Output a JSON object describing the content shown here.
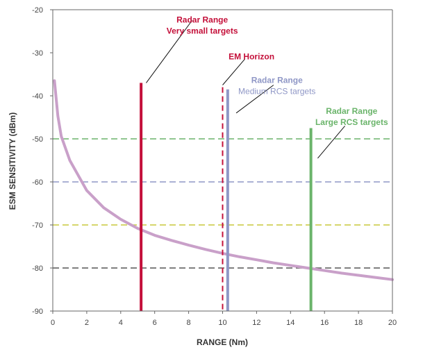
{
  "chart_data": {
    "type": "line",
    "xlabel": "RANGE (Nm)",
    "ylabel": "ESM SENSITIVITY (dBm)",
    "xlim": [
      0,
      20
    ],
    "ylim": [
      -90,
      -20
    ],
    "x_ticks": [
      "0",
      "2",
      "4",
      "6",
      "8",
      "10",
      "12",
      "14",
      "16",
      "18",
      "20"
    ],
    "y_ticks": [
      "-20",
      "-30",
      "-40",
      "-50",
      "-60",
      "-70",
      "-80",
      "-90"
    ],
    "grid": false,
    "curve": {
      "color": "#c9a0c9",
      "x": [
        0.1,
        0.3,
        0.5,
        1,
        1.5,
        2,
        3,
        4,
        5,
        6,
        7,
        8,
        9,
        10,
        11,
        12,
        13,
        14,
        15,
        16,
        17,
        18,
        19,
        20
      ],
      "y": [
        -36.5,
        -44.7,
        -49.4,
        -55.0,
        -58.5,
        -62.0,
        -66.0,
        -68.7,
        -70.8,
        -72.4,
        -73.6,
        -74.7,
        -75.7,
        -76.6,
        -77.4,
        -78.1,
        -78.8,
        -79.4,
        -80.0,
        -80.6,
        -81.2,
        -81.7,
        -82.2,
        -82.7
      ]
    },
    "horizontal_lines": [
      {
        "y": -50,
        "color": "#6ab46a"
      },
      {
        "y": -60,
        "color": "#8f97c6"
      },
      {
        "y": -70,
        "color": "#c8c83c"
      },
      {
        "y": -80,
        "color": "#555555"
      }
    ],
    "vertical_lines": [
      {
        "x": 5.2,
        "y_top": -37,
        "color": "#c4103a",
        "style": "solid"
      },
      {
        "x": 10.0,
        "y_top": -38,
        "color": "#c4103a",
        "style": "dashed"
      },
      {
        "x": 10.3,
        "y_top": -38.5,
        "color": "#8f97c6",
        "style": "solid"
      },
      {
        "x": 15.2,
        "y_top": -47.5,
        "color": "#6ab46a",
        "style": "solid"
      }
    ],
    "annotations": [
      {
        "lines": [
          "Radar Range",
          "Very small targets"
        ],
        "bold": [
          true,
          true
        ],
        "color": "#c4103a",
        "text_x": 8.8,
        "text_y": -23,
        "leader": [
          [
            5.5,
            -37
          ],
          [
            8.2,
            -22.5
          ]
        ]
      },
      {
        "lines": [
          "EM Horizon"
        ],
        "bold": [
          true
        ],
        "color": "#c4103a",
        "text_x": 11.7,
        "text_y": -31.5,
        "leader": [
          [
            10.0,
            -37.5
          ],
          [
            11.3,
            -31.5
          ]
        ]
      },
      {
        "lines": [
          "Radar Range",
          "Medium RCS targets"
        ],
        "bold": [
          true,
          false
        ],
        "color": "#8f97c6",
        "text_x": 13.2,
        "text_y": -37,
        "leader": [
          [
            10.8,
            -44
          ],
          [
            13.0,
            -37.5
          ]
        ]
      },
      {
        "lines": [
          "Radar Range",
          "Large RCS targets"
        ],
        "bold": [
          true,
          true
        ],
        "color": "#6ab46a",
        "text_x": 17.6,
        "text_y": -44.2,
        "leader": [
          [
            15.6,
            -54.5
          ],
          [
            17.2,
            -47
          ]
        ]
      }
    ]
  }
}
